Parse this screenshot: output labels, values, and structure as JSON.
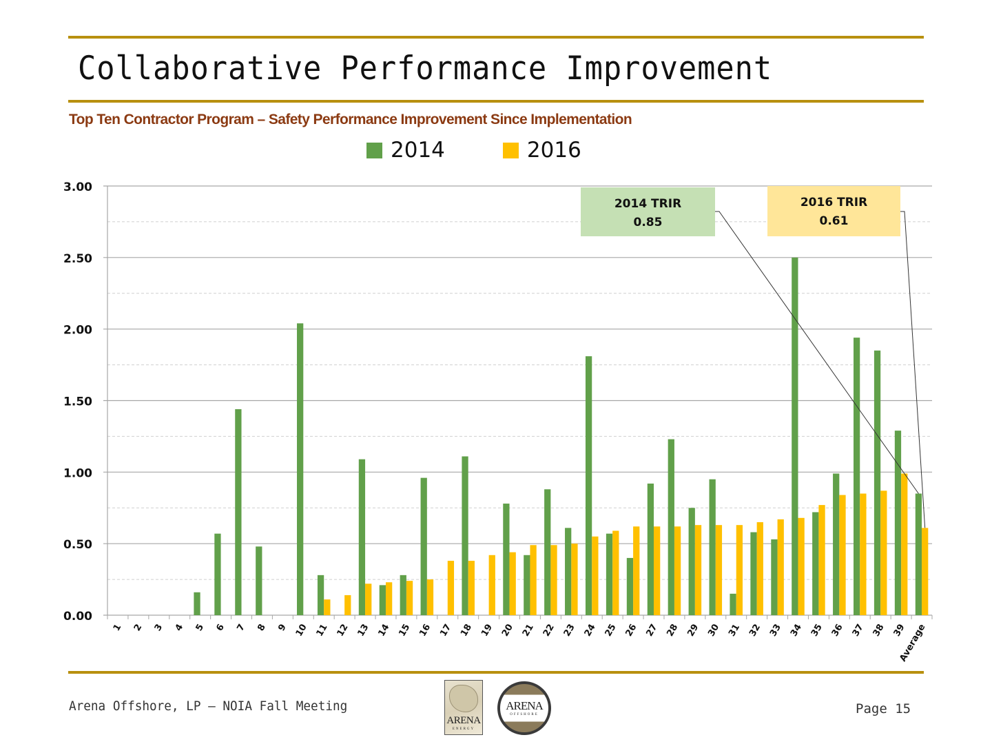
{
  "slide": {
    "title": "Collaborative Performance Improvement",
    "subtitle": "Top Ten Contractor Program – Safety Performance Improvement Since Implementation",
    "footer_text": "Arena Offshore, LP — NOIA Fall Meeting",
    "page_label": "Page 15",
    "rule_color": "#b8900f",
    "logos": {
      "energy": {
        "word": "ARENA",
        "sub": "ENERGY"
      },
      "offshore": {
        "word": "ARENA",
        "sub": "OFFSHORE"
      }
    }
  },
  "chart_data": {
    "type": "bar",
    "title": "",
    "xlabel": "",
    "ylabel": "",
    "ylim": [
      0,
      3.0
    ],
    "yticks": [
      0.0,
      0.5,
      1.0,
      1.5,
      2.0,
      2.5,
      3.0
    ],
    "ytick_labels": [
      "0.00",
      "0.50",
      "1.00",
      "1.50",
      "2.00",
      "2.50",
      "3.00"
    ],
    "grid": "major solid, minor dashed",
    "legend_position": "top-center",
    "categories": [
      "1",
      "2",
      "3",
      "4",
      "5",
      "6",
      "7",
      "8",
      "9",
      "10",
      "11",
      "12",
      "13",
      "14",
      "15",
      "16",
      "17",
      "18",
      "19",
      "20",
      "21",
      "22",
      "23",
      "24",
      "25",
      "26",
      "27",
      "28",
      "29",
      "30",
      "31",
      "32",
      "33",
      "34",
      "35",
      "36",
      "37",
      "38",
      "39",
      "Average"
    ],
    "series": [
      {
        "name": "2014",
        "color": "#61a04a",
        "values": [
          0,
          0,
          0,
          0,
          0.16,
          0.57,
          1.44,
          0.48,
          0,
          2.04,
          0.28,
          0,
          1.09,
          0.21,
          0.28,
          0.96,
          0,
          1.11,
          0,
          0.78,
          0.42,
          0.88,
          0.61,
          1.81,
          0.57,
          0.4,
          0.92,
          1.23,
          0.75,
          0.95,
          0.15,
          0.58,
          0.53,
          2.5,
          0.72,
          0.99,
          1.94,
          1.85,
          1.29,
          0.85
        ]
      },
      {
        "name": "2016",
        "color": "#ffc000",
        "values": [
          0,
          0,
          0,
          0,
          0,
          0,
          0,
          0,
          0,
          0,
          0.11,
          0.14,
          0.22,
          0.23,
          0.24,
          0.25,
          0.38,
          0.38,
          0.42,
          0.44,
          0.49,
          0.49,
          0.5,
          0.55,
          0.59,
          0.62,
          0.62,
          0.62,
          0.63,
          0.63,
          0.63,
          0.65,
          0.67,
          0.68,
          0.77,
          0.84,
          0.85,
          0.87,
          0.99,
          0.61
        ]
      }
    ],
    "annotations": [
      {
        "series": "2014",
        "line1": "2014 TRIR",
        "line2": "0.85",
        "points_to": "Average",
        "fill": "#c5e0b4"
      },
      {
        "series": "2016",
        "line1": "2016 TRIR",
        "line2": "0.61",
        "points_to": "Average",
        "fill": "#ffe699"
      }
    ]
  }
}
